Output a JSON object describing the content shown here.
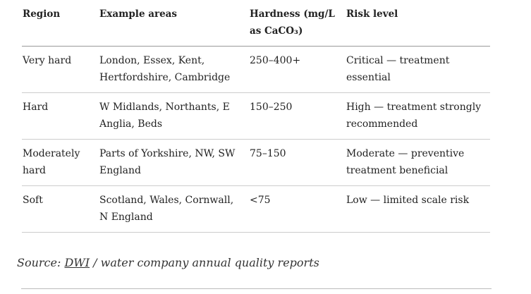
{
  "table": {
    "header": [
      "Region",
      "Example areas",
      "Hardness (mg/L as CaCO₃)",
      "Risk level"
    ],
    "rows": [
      [
        "Very hard",
        "London, Essex, Kent, Hertfordshire, Cambridge",
        "250–400+",
        "Critical — treatment essential"
      ],
      [
        "Hard",
        "W Midlands, Northants, E Anglia, Beds",
        "150–250",
        "High — treatment strongly recommended"
      ],
      [
        "Moderately hard",
        "Parts of Yorkshire, NW, SW England",
        "75–150",
        "Moderate — preventive treatment beneficial"
      ],
      [
        "Soft",
        "Scotland, Wales, Cornwall, N England",
        "<75",
        "Low — limited scale risk"
      ]
    ]
  },
  "source": {
    "prefix": "Source:",
    "link": "DWI",
    "suffix": "/ water company annual quality reports"
  }
}
